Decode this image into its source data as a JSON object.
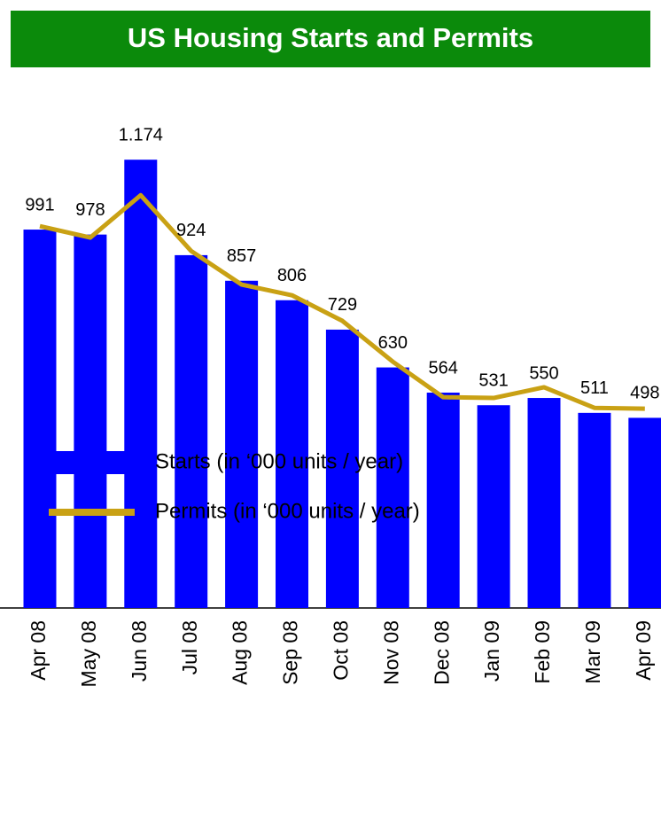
{
  "chart_data": {
    "type": "bar",
    "title": "US Housing Starts and Permits",
    "categories": [
      "Apr 08",
      "May 08",
      "Jun 08",
      "Jul 08",
      "Aug 08",
      "Sep 08",
      "Oct 08",
      "Nov 08",
      "Dec 08",
      "Jan 09",
      "Feb 09",
      "Mar 09",
      "Apr 09"
    ],
    "series": [
      {
        "name": "Starts (in ‘000 units / year)",
        "type": "bar",
        "color": "#0000ff",
        "values": [
          991,
          978,
          1174,
          924,
          857,
          806,
          729,
          630,
          564,
          531,
          550,
          511,
          498
        ],
        "value_labels": [
          "991",
          "978",
          "1.174",
          "924",
          "857",
          "806",
          "729",
          "630",
          "564",
          "531",
          "550",
          "511",
          "498"
        ]
      },
      {
        "name": "Permits (in ‘000 units / year)",
        "type": "line",
        "color": "#c9a114",
        "values": [
          1000,
          970,
          1081,
          935,
          847,
          819,
          752,
          645,
          552,
          550,
          578,
          524,
          522
        ]
      }
    ],
    "ylim": [
      0,
      1200
    ]
  }
}
